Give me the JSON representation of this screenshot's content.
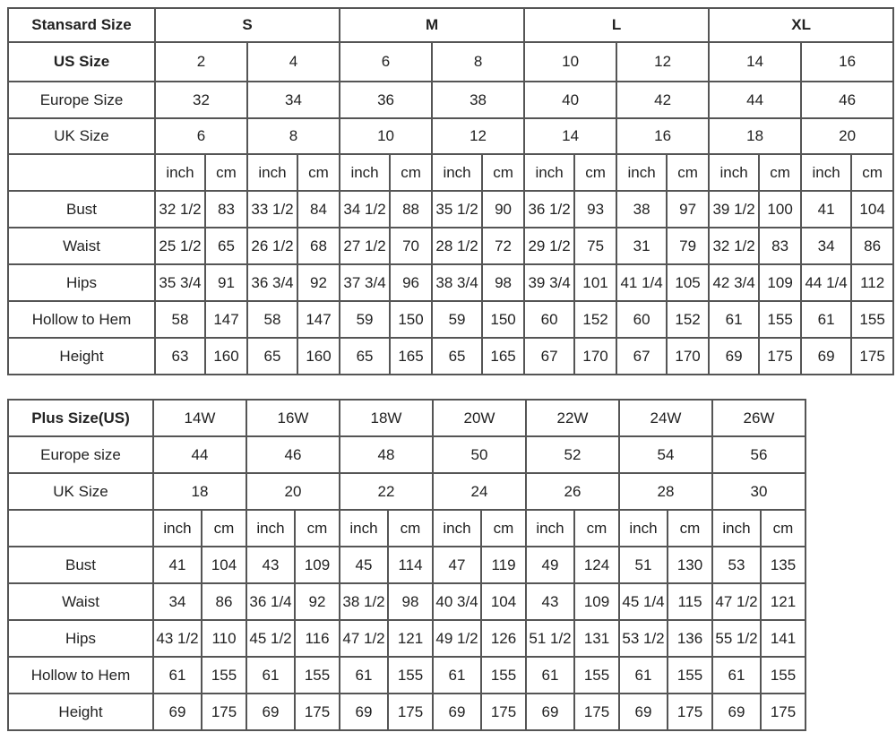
{
  "standard": {
    "header_label": "Stansard Size",
    "groups": [
      "S",
      "M",
      "L",
      "XL"
    ],
    "us_label": "US Size",
    "us_sizes": [
      "2",
      "4",
      "6",
      "8",
      "10",
      "12",
      "14",
      "16"
    ],
    "europe_label": "Europe Size",
    "europe_sizes": [
      "32",
      "34",
      "36",
      "38",
      "40",
      "42",
      "44",
      "46"
    ],
    "uk_label": "UK Size",
    "uk_sizes": [
      "6",
      "8",
      "10",
      "12",
      "14",
      "16",
      "18",
      "20"
    ],
    "unit_inch": "inch",
    "unit_cm": "cm",
    "measurements": [
      {
        "label": "Bust",
        "values": [
          "32 1/2",
          "83",
          "33 1/2",
          "84",
          "34 1/2",
          "88",
          "35 1/2",
          "90",
          "36 1/2",
          "93",
          "38",
          "97",
          "39 1/2",
          "100",
          "41",
          "104"
        ]
      },
      {
        "label": "Waist",
        "values": [
          "25 1/2",
          "65",
          "26 1/2",
          "68",
          "27 1/2",
          "70",
          "28 1/2",
          "72",
          "29 1/2",
          "75",
          "31",
          "79",
          "32 1/2",
          "83",
          "34",
          "86"
        ]
      },
      {
        "label": "Hips",
        "values": [
          "35 3/4",
          "91",
          "36 3/4",
          "92",
          "37 3/4",
          "96",
          "38 3/4",
          "98",
          "39 3/4",
          "101",
          "41 1/4",
          "105",
          "42 3/4",
          "109",
          "44 1/4",
          "112"
        ]
      },
      {
        "label": "Hollow to Hem",
        "values": [
          "58",
          "147",
          "58",
          "147",
          "59",
          "150",
          "59",
          "150",
          "60",
          "152",
          "60",
          "152",
          "61",
          "155",
          "61",
          "155"
        ]
      },
      {
        "label": "Height",
        "values": [
          "63",
          "160",
          "65",
          "160",
          "65",
          "165",
          "65",
          "165",
          "67",
          "170",
          "67",
          "170",
          "69",
          "175",
          "69",
          "175"
        ]
      }
    ]
  },
  "plus": {
    "header_label": "Plus Size(US)",
    "us_sizes": [
      "14W",
      "16W",
      "18W",
      "20W",
      "22W",
      "24W",
      "26W"
    ],
    "europe_label": "Europe size",
    "europe_sizes": [
      "44",
      "46",
      "48",
      "50",
      "52",
      "54",
      "56"
    ],
    "uk_label": "UK Size",
    "uk_sizes": [
      "18",
      "20",
      "22",
      "24",
      "26",
      "28",
      "30"
    ],
    "unit_inch": "inch",
    "unit_cm": "cm",
    "measurements": [
      {
        "label": "Bust",
        "values": [
          "41",
          "104",
          "43",
          "109",
          "45",
          "114",
          "47",
          "119",
          "49",
          "124",
          "51",
          "130",
          "53",
          "135"
        ]
      },
      {
        "label": "Waist",
        "values": [
          "34",
          "86",
          "36 1/4",
          "92",
          "38 1/2",
          "98",
          "40 3/4",
          "104",
          "43",
          "109",
          "45 1/4",
          "115",
          "47 1/2",
          "121"
        ]
      },
      {
        "label": "Hips",
        "values": [
          "43 1/2",
          "110",
          "45 1/2",
          "116",
          "47 1/2",
          "121",
          "49 1/2",
          "126",
          "51 1/2",
          "131",
          "53 1/2",
          "136",
          "55 1/2",
          "141"
        ]
      },
      {
        "label": "Hollow to Hem",
        "values": [
          "61",
          "155",
          "61",
          "155",
          "61",
          "155",
          "61",
          "155",
          "61",
          "155",
          "61",
          "155",
          "61",
          "155"
        ]
      },
      {
        "label": "Height",
        "values": [
          "69",
          "175",
          "69",
          "175",
          "69",
          "175",
          "69",
          "175",
          "69",
          "175",
          "69",
          "175",
          "69",
          "175"
        ]
      }
    ]
  }
}
